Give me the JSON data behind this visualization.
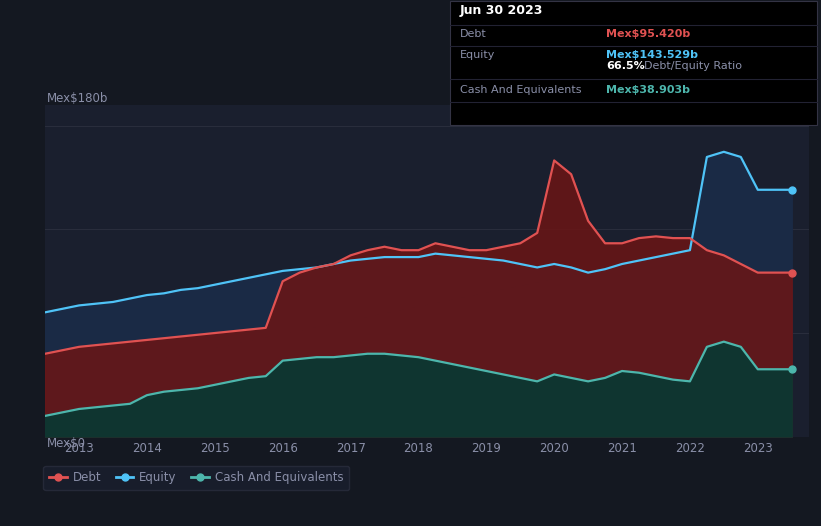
{
  "background_color": "#141821",
  "plot_bg_color": "#1a1f2e",
  "annotation": {
    "date": "Jun 30 2023",
    "debt_label": "Debt",
    "debt_value": "Mex$95.420b",
    "equity_label": "Equity",
    "equity_value": "Mex$143.529b",
    "ratio": "66.5%",
    "ratio_label": "Debt/Equity Ratio",
    "cash_label": "Cash And Equivalents",
    "cash_value": "Mex$38.903b"
  },
  "ylabel_top": "Mex$180b",
  "ylabel_bottom": "Mex$0",
  "debt_color": "#e05252",
  "equity_color": "#4fc3f7",
  "cash_color": "#4db6ac",
  "debt_fill_color": "#6b1515",
  "equity_fill_color": "#1a2a45",
  "cash_fill_color": "#0f3530",
  "years": [
    2013,
    2014,
    2015,
    2016,
    2017,
    2018,
    2019,
    2020,
    2021,
    2022,
    2023
  ],
  "debt": {
    "x": [
      2012.5,
      2012.75,
      2013.0,
      2013.25,
      2013.5,
      2013.75,
      2014.0,
      2014.25,
      2014.5,
      2014.75,
      2015.0,
      2015.25,
      2015.5,
      2015.75,
      2016.0,
      2016.25,
      2016.5,
      2016.75,
      2017.0,
      2017.25,
      2017.5,
      2017.75,
      2018.0,
      2018.25,
      2018.5,
      2018.75,
      2019.0,
      2019.25,
      2019.5,
      2019.75,
      2020.0,
      2020.25,
      2020.5,
      2020.75,
      2021.0,
      2021.25,
      2021.5,
      2021.75,
      2022.0,
      2022.25,
      2022.5,
      2022.75,
      2023.0,
      2023.5
    ],
    "y": [
      48,
      50,
      52,
      53,
      54,
      55,
      56,
      57,
      58,
      59,
      60,
      61,
      62,
      63,
      90,
      95,
      98,
      100,
      105,
      108,
      110,
      108,
      108,
      112,
      110,
      108,
      108,
      110,
      112,
      118,
      160,
      152,
      125,
      112,
      112,
      115,
      116,
      115,
      115,
      108,
      105,
      100,
      95,
      95
    ]
  },
  "equity": {
    "x": [
      2012.5,
      2012.75,
      2013.0,
      2013.25,
      2013.5,
      2013.75,
      2014.0,
      2014.25,
      2014.5,
      2014.75,
      2015.0,
      2015.25,
      2015.5,
      2015.75,
      2016.0,
      2016.25,
      2016.5,
      2016.75,
      2017.0,
      2017.25,
      2017.5,
      2017.75,
      2018.0,
      2018.25,
      2018.5,
      2018.75,
      2019.0,
      2019.25,
      2019.5,
      2019.75,
      2020.0,
      2020.25,
      2020.5,
      2020.75,
      2021.0,
      2021.25,
      2021.5,
      2021.75,
      2022.0,
      2022.25,
      2022.5,
      2022.75,
      2023.0,
      2023.5
    ],
    "y": [
      72,
      74,
      76,
      77,
      78,
      80,
      82,
      83,
      85,
      86,
      88,
      90,
      92,
      94,
      96,
      97,
      98,
      100,
      102,
      103,
      104,
      104,
      104,
      106,
      105,
      104,
      103,
      102,
      100,
      98,
      100,
      98,
      95,
      97,
      100,
      102,
      104,
      106,
      108,
      162,
      165,
      162,
      143,
      143
    ]
  },
  "cash": {
    "x": [
      2012.5,
      2012.75,
      2013.0,
      2013.25,
      2013.5,
      2013.75,
      2014.0,
      2014.25,
      2014.5,
      2014.75,
      2015.0,
      2015.25,
      2015.5,
      2015.75,
      2016.0,
      2016.25,
      2016.5,
      2016.75,
      2017.0,
      2017.25,
      2017.5,
      2017.75,
      2018.0,
      2018.25,
      2018.5,
      2018.75,
      2019.0,
      2019.25,
      2019.5,
      2019.75,
      2020.0,
      2020.25,
      2020.5,
      2020.75,
      2021.0,
      2021.25,
      2021.5,
      2021.75,
      2022.0,
      2022.25,
      2022.5,
      2022.75,
      2023.0,
      2023.5
    ],
    "y": [
      12,
      14,
      16,
      17,
      18,
      19,
      24,
      26,
      27,
      28,
      30,
      32,
      34,
      35,
      44,
      45,
      46,
      46,
      47,
      48,
      48,
      47,
      46,
      44,
      42,
      40,
      38,
      36,
      34,
      32,
      36,
      34,
      32,
      34,
      38,
      37,
      35,
      33,
      32,
      52,
      55,
      52,
      39,
      39
    ]
  },
  "xlim": [
    2012.5,
    2023.75
  ],
  "ylim": [
    0,
    192
  ],
  "grid_color": "#2a2e3d",
  "text_color": "#8a8fa8",
  "legend_bg": "#1a1f2e",
  "legend_border": "#2a2e3d"
}
